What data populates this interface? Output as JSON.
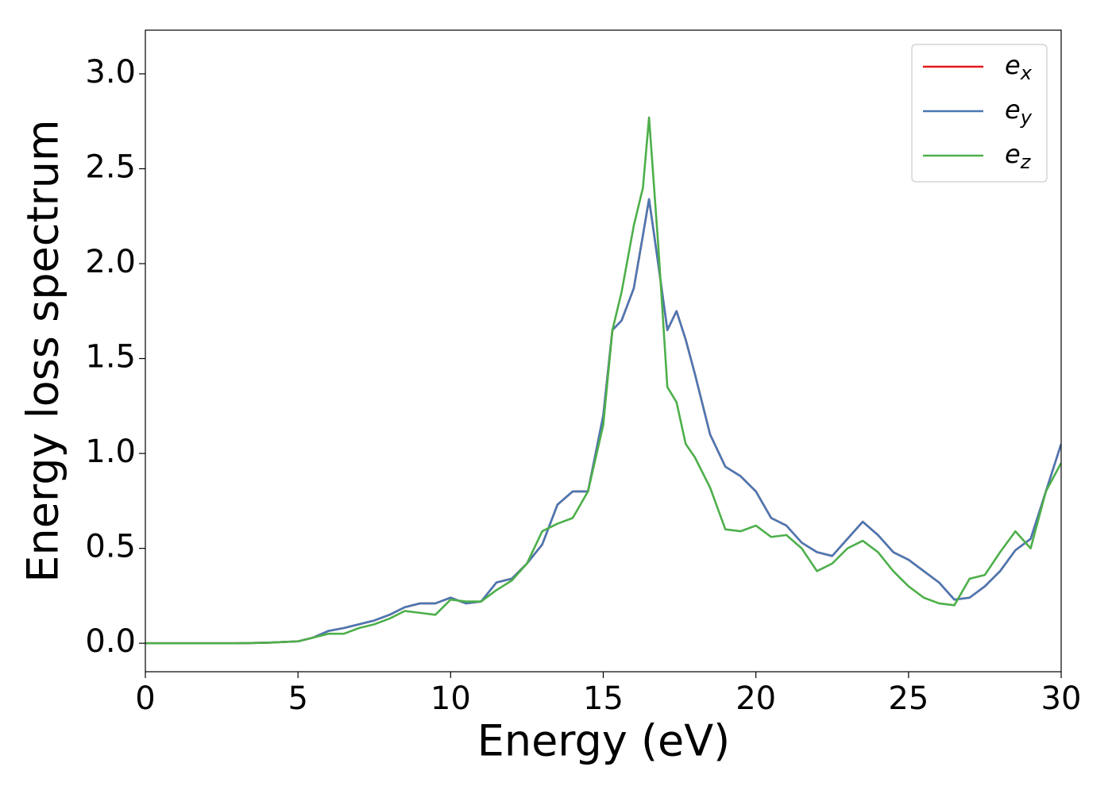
{
  "chart_data": {
    "type": "line",
    "xlabel": "Energy (eV)",
    "ylabel": "Energy loss spectrum",
    "x": [
      0,
      1,
      2,
      3,
      4,
      5,
      5.5,
      6,
      6.5,
      7,
      7.5,
      8,
      8.5,
      9,
      9.5,
      10,
      10.5,
      11,
      11.5,
      12,
      12.5,
      13,
      13.5,
      14,
      14.5,
      15,
      15.3,
      15.6,
      16,
      16.3,
      16.5,
      16.8,
      17.1,
      17.4,
      17.7,
      18,
      18.5,
      19,
      19.5,
      20,
      20.5,
      21,
      21.5,
      22,
      22.5,
      23,
      23.5,
      24,
      24.5,
      25,
      25.5,
      26,
      26.5,
      27,
      27.5,
      28,
      28.5,
      29,
      29.5,
      30
    ],
    "series": [
      {
        "name": "ex",
        "color": "#e41a1c",
        "values": [
          0,
          0,
          0,
          0,
          0.003,
          0.01,
          0.03,
          0.065,
          0.08,
          0.1,
          0.12,
          0.15,
          0.19,
          0.21,
          0.21,
          0.24,
          0.21,
          0.22,
          0.32,
          0.34,
          0.42,
          0.52,
          0.73,
          0.8,
          0.8,
          1.2,
          1.65,
          1.7,
          1.87,
          2.15,
          2.34,
          2.0,
          1.65,
          1.75,
          1.6,
          1.42,
          1.1,
          0.93,
          0.88,
          0.8,
          0.66,
          0.62,
          0.53,
          0.48,
          0.46,
          0.55,
          0.64,
          0.57,
          0.48,
          0.44,
          0.38,
          0.32,
          0.23,
          0.24,
          0.3,
          0.38,
          0.49,
          0.55,
          0.8,
          1.05
        ]
      },
      {
        "name": "ey",
        "color": "#4a78b3",
        "values": [
          0,
          0,
          0,
          0,
          0.003,
          0.01,
          0.03,
          0.065,
          0.08,
          0.1,
          0.12,
          0.15,
          0.19,
          0.21,
          0.21,
          0.24,
          0.21,
          0.22,
          0.32,
          0.34,
          0.42,
          0.52,
          0.73,
          0.8,
          0.8,
          1.2,
          1.65,
          1.7,
          1.87,
          2.15,
          2.34,
          2.0,
          1.65,
          1.75,
          1.6,
          1.42,
          1.1,
          0.93,
          0.88,
          0.8,
          0.66,
          0.62,
          0.53,
          0.48,
          0.46,
          0.55,
          0.64,
          0.57,
          0.48,
          0.44,
          0.38,
          0.32,
          0.23,
          0.24,
          0.3,
          0.38,
          0.49,
          0.55,
          0.8,
          1.05
        ]
      },
      {
        "name": "ez",
        "color": "#4daf4a",
        "values": [
          0,
          0,
          0,
          0,
          0.003,
          0.01,
          0.03,
          0.05,
          0.05,
          0.08,
          0.1,
          0.13,
          0.17,
          0.16,
          0.15,
          0.23,
          0.22,
          0.22,
          0.28,
          0.33,
          0.42,
          0.59,
          0.63,
          0.66,
          0.8,
          1.15,
          1.65,
          1.85,
          2.2,
          2.4,
          2.77,
          2.1,
          1.35,
          1.27,
          1.05,
          0.98,
          0.82,
          0.6,
          0.59,
          0.62,
          0.56,
          0.57,
          0.5,
          0.38,
          0.42,
          0.5,
          0.54,
          0.48,
          0.38,
          0.3,
          0.24,
          0.21,
          0.2,
          0.34,
          0.36,
          0.48,
          0.59,
          0.5,
          0.8,
          0.95
        ]
      }
    ],
    "xlim": [
      0,
      30
    ],
    "xticks": [
      0,
      5,
      10,
      15,
      20,
      25,
      30
    ],
    "ylim": [
      -0.15,
      3.23
    ],
    "yticks": [
      {
        "value": 0,
        "label": "0.0"
      },
      0.5,
      {
        "value": 1,
        "label": "1.0"
      },
      1.5,
      {
        "value": 2,
        "label": "2.0"
      },
      2.5,
      {
        "value": 3,
        "label": "3.0"
      }
    ],
    "grid": false,
    "legend": "upper right"
  }
}
